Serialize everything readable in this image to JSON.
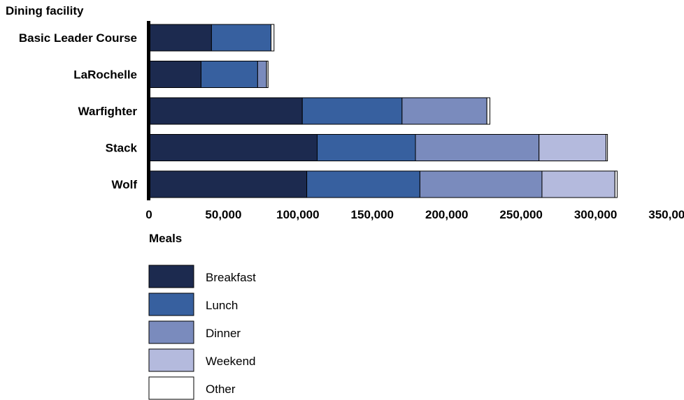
{
  "chart_data": {
    "type": "bar",
    "orientation": "horizontal",
    "stacked": true,
    "ylabel": "Dining facility",
    "xlabel": "Meals",
    "xlim": [
      0,
      350000
    ],
    "xticks": [
      0,
      50000,
      100000,
      150000,
      200000,
      250000,
      300000,
      350000
    ],
    "xtick_labels": [
      "0",
      "50,000",
      "100,000",
      "150,000",
      "200,000",
      "250,000",
      "300,000",
      "350,000"
    ],
    "categories": [
      "Basic Leader Course",
      "LaRochelle",
      "Warfighter",
      "Stack",
      "Wolf"
    ],
    "series": [
      {
        "name": "Breakfast",
        "color": "#1c2a4f",
        "values": [
          42000,
          35000,
          103000,
          113000,
          106000
        ]
      },
      {
        "name": "Lunch",
        "color": "#37609f",
        "values": [
          40000,
          38000,
          67000,
          66000,
          76000
        ]
      },
      {
        "name": "Dinner",
        "color": "#7a8bbd",
        "values": [
          0,
          6000,
          57000,
          83000,
          82000
        ]
      },
      {
        "name": "Weekend",
        "color": "#b4badd",
        "values": [
          0,
          0,
          0,
          45000,
          49000
        ]
      },
      {
        "name": "Other",
        "color": "#ffffff",
        "values": [
          2000,
          1000,
          2000,
          1000,
          1500
        ]
      }
    ],
    "grid": false,
    "legend_position": "bottom-left"
  }
}
